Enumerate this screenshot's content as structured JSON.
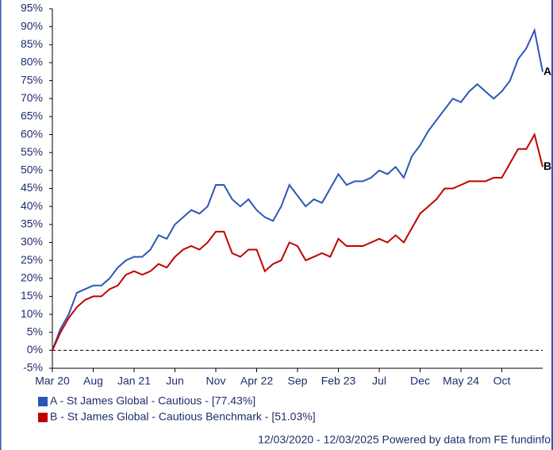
{
  "chart_data": {
    "type": "line",
    "categories": [
      "Mar 20",
      null,
      null,
      null,
      null,
      "Aug",
      null,
      null,
      null,
      null,
      "Jan 21",
      null,
      null,
      null,
      null,
      "Jun",
      null,
      null,
      null,
      null,
      "Nov",
      null,
      null,
      null,
      null,
      "Apr 22",
      null,
      null,
      null,
      null,
      "Sep",
      null,
      null,
      null,
      null,
      "Feb 23",
      null,
      null,
      null,
      null,
      "Jul",
      null,
      null,
      null,
      null,
      "Dec",
      null,
      null,
      null,
      null,
      "May 24",
      null,
      null,
      null,
      null,
      "Oct",
      null,
      null,
      null,
      null,
      null
    ],
    "series": [
      {
        "name": "A - St James Global - Cautious - [77.43%]",
        "label": "A",
        "color": "#2b56b8",
        "values": [
          0,
          6,
          10,
          16,
          17,
          18,
          18,
          20,
          23,
          25,
          26,
          26,
          28,
          32,
          31,
          35,
          37,
          39,
          38,
          40,
          46,
          46,
          42,
          40,
          42,
          39,
          37,
          36,
          40,
          46,
          43,
          40,
          42,
          41,
          45,
          49,
          46,
          47,
          47,
          48,
          50,
          49,
          51,
          48,
          54,
          57,
          61,
          64,
          67,
          70,
          69,
          72,
          74,
          72,
          70,
          72,
          75,
          81,
          84,
          89,
          77.43
        ]
      },
      {
        "name": "B - St James Global - Cautious Benchmark - [51.03%]",
        "label": "B",
        "color": "#c00000",
        "values": [
          0,
          5,
          9,
          12,
          14,
          15,
          15,
          17,
          18,
          21,
          22,
          21,
          22,
          24,
          23,
          26,
          28,
          29,
          28,
          30,
          33,
          33,
          27,
          26,
          28,
          28,
          22,
          24,
          25,
          30,
          29,
          25,
          26,
          27,
          26,
          31,
          29,
          29,
          29,
          30,
          31,
          30,
          32,
          30,
          34,
          38,
          40,
          42,
          45,
          45,
          46,
          47,
          47,
          47,
          48,
          48,
          52,
          56,
          56,
          60,
          51.03
        ]
      }
    ],
    "ylim": [
      -5,
      95
    ],
    "yticks": [
      {
        "value": -5,
        "label": "-5%"
      },
      {
        "value": 0,
        "label": "0%"
      },
      {
        "value": 5,
        "label": "5%"
      },
      {
        "value": 10,
        "label": "10%"
      },
      {
        "value": 15,
        "label": "15%"
      },
      {
        "value": 20,
        "label": "20%"
      },
      {
        "value": 25,
        "label": "25%"
      },
      {
        "value": 30,
        "label": "30%"
      },
      {
        "value": 35,
        "label": "35%"
      },
      {
        "value": 40,
        "label": "40%"
      },
      {
        "value": 45,
        "label": "45%"
      },
      {
        "value": 50,
        "label": "50%"
      },
      {
        "value": 55,
        "label": "55%"
      },
      {
        "value": 60,
        "label": "60%"
      },
      {
        "value": 65,
        "label": "65%"
      },
      {
        "value": 70,
        "label": "70%"
      },
      {
        "value": 75,
        "label": "75%"
      },
      {
        "value": 80,
        "label": "80%"
      },
      {
        "value": 85,
        "label": "85%"
      },
      {
        "value": 90,
        "label": "90%"
      },
      {
        "value": 95,
        "label": "95%"
      }
    ],
    "grid": false,
    "footer": "12/03/2020 - 12/03/2025 Powered by data from FE fundinfo"
  }
}
